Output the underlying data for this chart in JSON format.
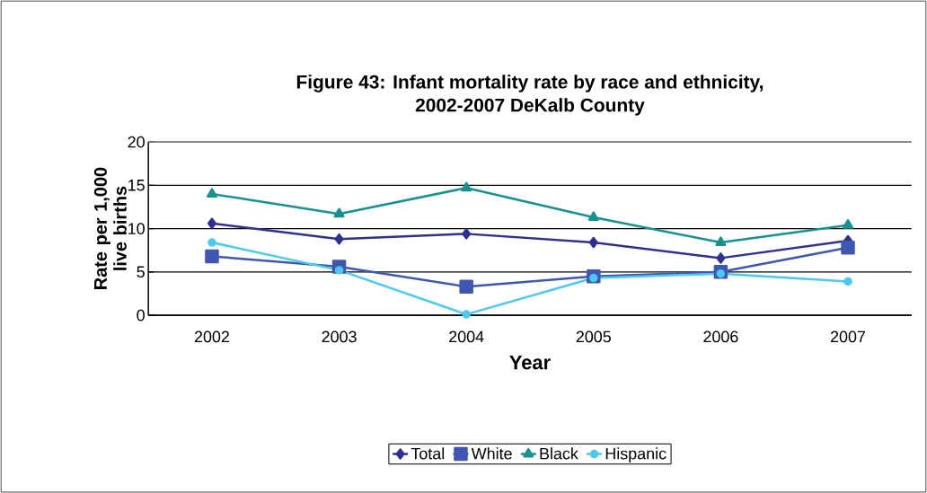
{
  "chart_data": {
    "type": "line",
    "title": "Figure 43: Infant mortality rate by race and ethnicity,\n2002-2007 DeKalb County",
    "xlabel": "Year",
    "ylabel": "Rate per 1,000 live births",
    "categories": [
      "2002",
      "2003",
      "2004",
      "2005",
      "2006",
      "2007"
    ],
    "series": [
      {
        "name": "Total",
        "color": "#2e3192",
        "marker": "diamond",
        "values": [
          10.6,
          8.8,
          9.4,
          8.4,
          6.6,
          8.6
        ]
      },
      {
        "name": "White",
        "color": "#3f57b0",
        "marker": "square",
        "values": [
          6.8,
          5.6,
          3.3,
          4.5,
          5.0,
          7.8
        ]
      },
      {
        "name": "Black",
        "color": "#16928f",
        "marker": "triangle",
        "values": [
          14.0,
          11.7,
          14.7,
          11.3,
          8.4,
          10.4
        ]
      },
      {
        "name": "Hispanic",
        "color": "#4cc9ef",
        "marker": "circle",
        "values": [
          8.4,
          5.2,
          0.1,
          4.3,
          4.8,
          3.9
        ]
      }
    ],
    "ylim": [
      0,
      20
    ],
    "yticks": [
      0,
      5,
      10,
      15,
      20
    ],
    "grid": "y",
    "legend": "bottom"
  }
}
